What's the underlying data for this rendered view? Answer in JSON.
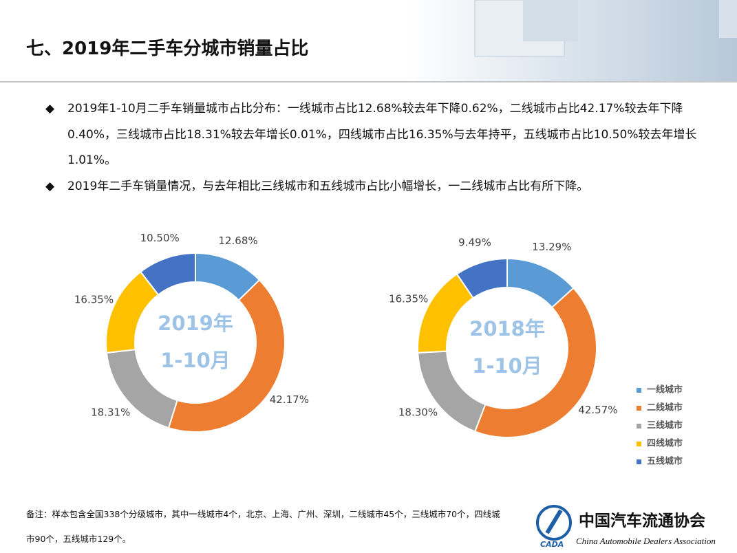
{
  "title": "七、2019年二手车分城市销量占比",
  "bullets": [
    "2019年1-10月二手车销量城市占比分布：一线城市占比12.68%较去年下降0.62%，二线城市占比42.17%较去年下降0.40%，三线城市占比18.31%较去年增长0.01%，四线城市占比16.35%与去年持平，五线城市占比10.50%较去年增长1.01%。",
    "2019年二手车销量情况，与去年相比三线城市和五线城市占比小幅增长，一二线城市占比有所下降。"
  ],
  "note": "备注：样本包含全国338个分级城市，其中一线城市4个，北京、上海、广州、深圳，二线城市45个，三线城市70个，四线城市90个，五线城市129个。",
  "logo": {
    "name": "中国汽车流通协会",
    "english": "China Automobile Dealers Association",
    "abbr": "CADA"
  },
  "chart_data": [
    {
      "type": "donut",
      "center_text": [
        "2019年",
        "1-10月"
      ],
      "values": [
        12.68,
        42.17,
        18.31,
        16.35,
        10.5
      ],
      "value_labels": [
        "12.68%",
        "42.17%",
        "18.31%",
        "16.35%",
        "10.50%"
      ],
      "colors": [
        "#5b9bd5",
        "#ed7d31",
        "#a5a5a5",
        "#ffc000",
        "#4472c4"
      ]
    },
    {
      "type": "donut",
      "center_text": [
        "2018年",
        "1-10月"
      ],
      "categories": [
        "一线城市",
        "二线城市",
        "三线城市",
        "四线城市",
        "五线城市"
      ],
      "values": [
        13.29,
        42.57,
        18.3,
        16.35,
        9.49
      ],
      "value_labels": [
        "13.29%",
        "42.57%",
        "18.30%",
        "16.35%",
        "9.49%"
      ],
      "colors": [
        "#5b9bd5",
        "#ed7d31",
        "#a5a5a5",
        "#ffc000",
        "#4472c4"
      ],
      "legend": "right"
    }
  ]
}
